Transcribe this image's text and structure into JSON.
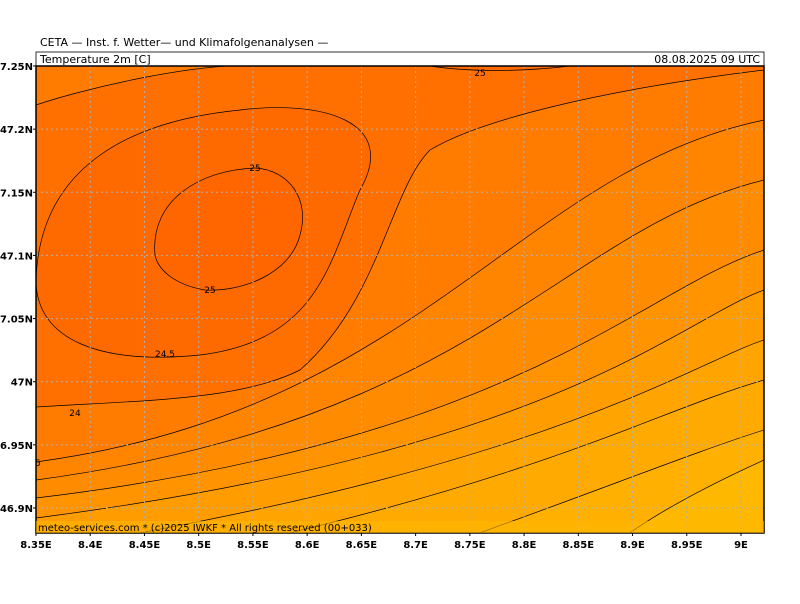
{
  "header": {
    "institute": "CETA — Inst. f. Wetter— und Klimafolgenanalysen —",
    "variable": "Temperature 2m [C]",
    "time": "08.08.2025 09 UTC"
  },
  "y_axis_labels": [
    "7.25N",
    "47.2N",
    "7.15N",
    "47.1N",
    "7.05N",
    "47N",
    "6.95N",
    "46.9N"
  ],
  "x_axis_labels": [
    "8.35E",
    "8.4E",
    "8.45E",
    "8.5E",
    "8.55E",
    "8.6E",
    "8.65E",
    "8.7E",
    "8.75E",
    "8.8E",
    "8.85E",
    "8.9E",
    "8.95E",
    "9E"
  ],
  "contour_labels": [
    "25",
    "25",
    "25",
    "24.5",
    "24",
    "5"
  ],
  "footer": "meteo-services.com * (c)2025 IWKF * All rights reserved (00+033)"
}
